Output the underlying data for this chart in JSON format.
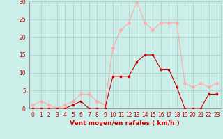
{
  "hours": [
    0,
    1,
    2,
    3,
    4,
    5,
    6,
    7,
    8,
    9,
    10,
    11,
    12,
    13,
    14,
    15,
    16,
    17,
    18,
    19,
    20,
    21,
    22,
    23
  ],
  "vent_moyen": [
    0,
    0,
    0,
    0,
    0,
    1,
    2,
    0,
    0,
    0,
    9,
    9,
    9,
    13,
    15,
    15,
    11,
    11,
    6,
    0,
    0,
    0,
    4,
    4
  ],
  "rafales": [
    1,
    2,
    1,
    0,
    1,
    2,
    4,
    4,
    2,
    1,
    17,
    22,
    24,
    30,
    24,
    22,
    24,
    24,
    24,
    7,
    6,
    7,
    6,
    7
  ],
  "color_moyen": "#cc0000",
  "color_rafales": "#ffaaaa",
  "bg_color": "#cceee8",
  "grid_color": "#aacccc",
  "xlabel": "Vent moyen/en rafales ( km/h )",
  "ylim": [
    0,
    30
  ],
  "xlim_min": -0.5,
  "xlim_max": 23.5,
  "yticks": [
    0,
    5,
    10,
    15,
    20,
    25,
    30
  ],
  "xticks": [
    0,
    1,
    2,
    3,
    4,
    5,
    6,
    7,
    8,
    9,
    10,
    11,
    12,
    13,
    14,
    15,
    16,
    17,
    18,
    19,
    20,
    21,
    22,
    23
  ],
  "tick_fontsize": 5.5,
  "xlabel_fontsize": 6.5
}
